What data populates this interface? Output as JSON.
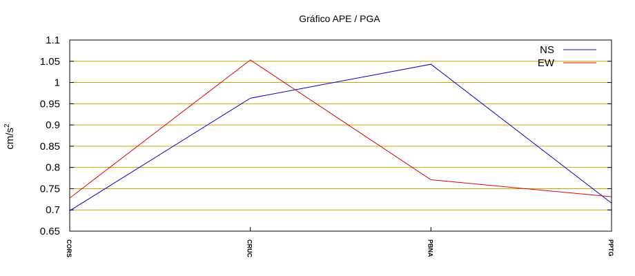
{
  "chart_data": {
    "type": "line",
    "title": "Gráfico  APE / PGA",
    "xlabel": "",
    "ylabel": "cm/s",
    "ylabel_superscript": "2",
    "categories": [
      "CORS",
      "CRUC",
      "PBNA",
      "PPTG"
    ],
    "ylim": [
      0.65,
      1.1
    ],
    "yticks": [
      "0.65",
      "0.7",
      "0.75",
      "0.8",
      "0.85",
      "0.9",
      "0.95",
      "1",
      "1.05",
      "1.1"
    ],
    "grid": "horizontal",
    "legend_position": "top-right",
    "series": [
      {
        "name": "NS",
        "color": "#0000cc",
        "values": [
          0.698,
          0.963,
          1.043,
          0.716
        ]
      },
      {
        "name": "EW",
        "color": "#dd0000",
        "values": [
          0.728,
          1.053,
          0.771,
          0.731
        ]
      }
    ],
    "grid_color": "#d4a000"
  }
}
